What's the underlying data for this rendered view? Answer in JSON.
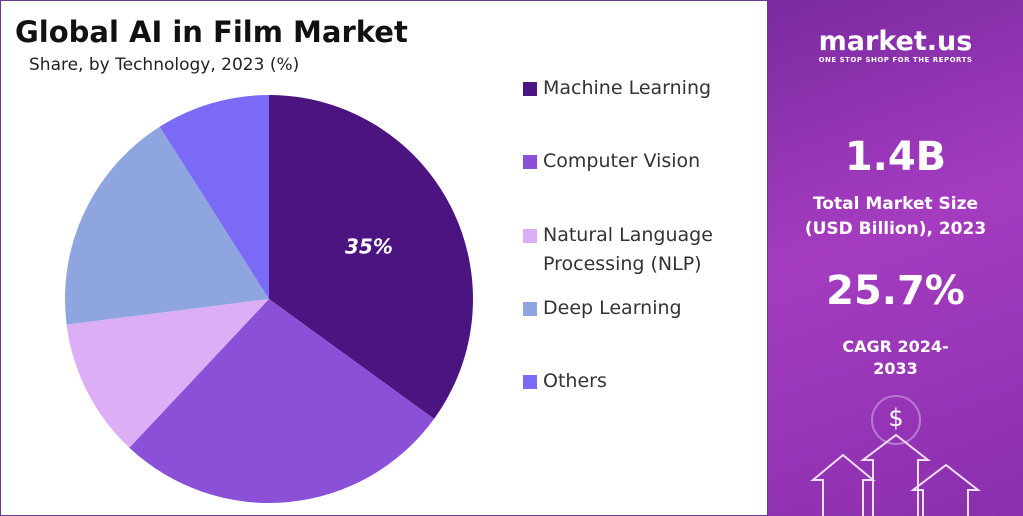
{
  "chart_data": {
    "type": "pie",
    "title": "Global AI in Film Market",
    "subtitle": "Share, by Technology, 2023 (%)",
    "categories": [
      "Machine Learning",
      "Computer Vision",
      "Natural Language Processing (NLP)",
      "Deep Learning",
      "Others"
    ],
    "values": [
      35,
      27,
      11,
      18,
      9
    ],
    "value_labels": [
      "35%",
      null,
      null,
      null,
      null
    ],
    "colors": [
      "#4b1480",
      "#8a50d8",
      "#dcaef5",
      "#8fa5e0",
      "#7b6af5"
    ]
  },
  "sidebar": {
    "brand": "market.us",
    "tagline": "ONE STOP SHOP FOR THE REPORTS",
    "market_size": "1.4B",
    "market_size_label": "Total Market Size (USD Billion), 2023",
    "cagr": "25.7%",
    "cagr_label": "CAGR 2024-2033"
  }
}
